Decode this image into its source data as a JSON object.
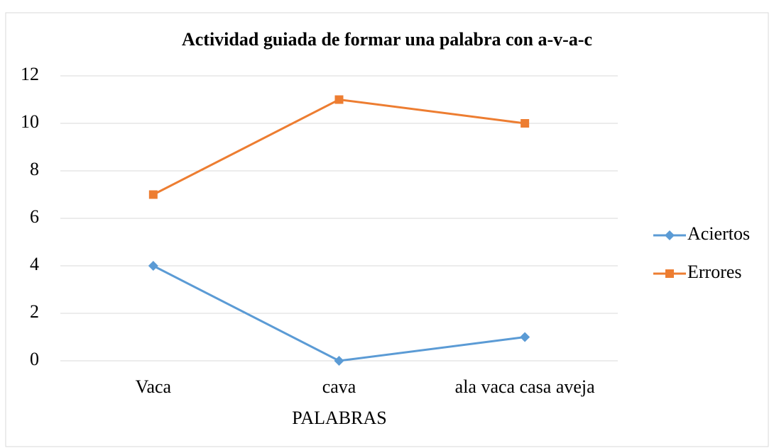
{
  "chart_data": {
    "type": "line",
    "title": "Actividad guiada de formar una palabra con  a-v-a-c",
    "x_label": "PALABRAS",
    "categories": [
      "Vaca",
      "cava",
      "ala vaca casa aveja"
    ],
    "series": [
      {
        "name": "Aciertos",
        "color": "#5b9bd5",
        "marker": "diamond",
        "values": [
          4,
          0,
          1
        ]
      },
      {
        "name": "Errores",
        "color": "#ed7d31",
        "marker": "square",
        "values": [
          7,
          11,
          10
        ]
      }
    ],
    "ylim": [
      0,
      12
    ],
    "yticks": [
      0,
      2,
      4,
      6,
      8,
      10,
      12
    ],
    "grid": true,
    "legend": "right"
  }
}
